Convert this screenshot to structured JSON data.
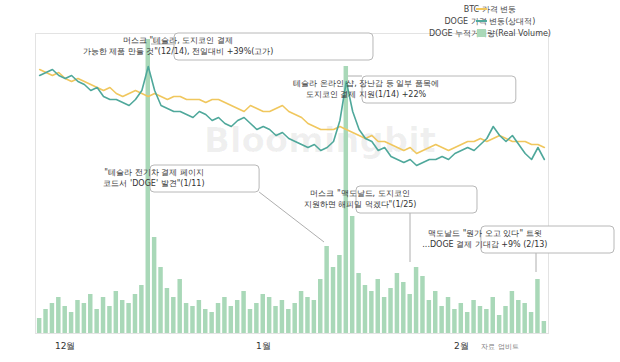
{
  "chart_data": {
    "type": "line",
    "categories": [
      null,
      null,
      null,
      null,
      "12월",
      null,
      null,
      null,
      null,
      null,
      null,
      null,
      null,
      null,
      null,
      null,
      null,
      null,
      null,
      null,
      null,
      null,
      null,
      null,
      null,
      null,
      null,
      null,
      null,
      null,
      null,
      null,
      null,
      null,
      null,
      "1월",
      null,
      null,
      null,
      null,
      null,
      null,
      null,
      null,
      null,
      null,
      null,
      null,
      null,
      null,
      null,
      null,
      null,
      null,
      null,
      null,
      null,
      null,
      null,
      null,
      null,
      null,
      null,
      null,
      null,
      null,
      "2월",
      null,
      null,
      null,
      null,
      null,
      null,
      null,
      null,
      null,
      null,
      null,
      null,
      null
    ],
    "ylim": [
      0,
      100
    ],
    "tick_labels": "x",
    "legend": "top-right",
    "series": [
      {
        "name": "BTC 가격 변동",
        "color": "#f0c75e",
        "values": [
          88,
          87,
          86,
          87,
          85,
          84,
          85,
          84,
          83,
          82,
          81,
          82,
          80,
          79,
          80,
          81,
          80,
          79,
          80,
          79,
          78,
          79,
          79,
          78,
          78,
          78,
          77,
          78,
          78,
          77,
          76,
          75,
          74,
          76,
          75,
          74,
          74,
          75,
          76,
          74,
          73,
          72,
          70,
          69,
          68,
          68,
          68,
          69,
          68,
          67,
          66,
          65,
          66,
          64,
          64,
          63,
          62,
          61,
          62,
          60,
          61,
          62,
          63,
          62,
          61,
          62,
          63,
          64,
          64,
          65,
          64,
          65,
          66,
          65,
          64,
          64,
          64,
          63,
          63,
          62
        ]
      },
      {
        "name": "DOGE 가격 변동(상대적)",
        "color": "#4fa89b",
        "values": [
          86,
          87,
          88,
          86,
          85,
          86,
          84,
          83,
          81,
          82,
          79,
          78,
          78,
          77,
          76,
          78,
          81,
          89,
          81,
          76,
          75,
          74,
          74,
          73,
          72,
          74,
          73,
          71,
          72,
          70,
          69,
          71,
          72,
          70,
          68,
          69,
          68,
          66,
          67,
          65,
          64,
          63,
          62,
          63,
          61,
          62,
          64,
          71,
          84,
          74,
          68,
          65,
          64,
          61,
          62,
          59,
          58,
          57,
          58,
          56,
          57,
          58,
          58,
          59,
          58,
          60,
          61,
          62,
          61,
          63,
          65,
          69,
          66,
          64,
          66,
          63,
          60,
          58,
          62,
          58
        ]
      },
      {
        "name": "DOGE 누적거래량(Real Volume)",
        "type": "bar",
        "color": "#a9d8b8",
        "values": [
          5,
          8,
          10,
          12,
          9,
          7,
          11,
          10,
          13,
          8,
          12,
          9,
          14,
          11,
          10,
          13,
          16,
          98,
          32,
          22,
          15,
          12,
          18,
          10,
          9,
          11,
          8,
          7,
          10,
          12,
          9,
          11,
          14,
          8,
          10,
          13,
          12,
          9,
          11,
          8,
          10,
          14,
          12,
          11,
          18,
          29,
          22,
          26,
          89,
          39,
          20,
          16,
          14,
          18,
          12,
          15,
          20,
          17,
          13,
          22,
          19,
          11,
          14,
          9,
          12,
          8,
          10,
          7,
          11,
          9,
          8,
          12,
          6,
          9,
          14,
          11,
          10,
          7,
          18,
          4
        ]
      }
    ],
    "annotations": [
      {
        "text": "머스크 \"테슬라, 도지코인 결제\n가능한 제품 만들 것\"(12/14), 전일대비 +39%(고가)"
      },
      {
        "text": "\"테슬라 전기차 결제 페이지\n코드서 'DOGE' 발견\"(1/11)"
      },
      {
        "text": "테슬라 온라인 샵, 장난감 등 일부 품목에\n도지코인 결제 지원(1/14) +22%"
      },
      {
        "text": "머스크 \"맥도날드, 도지코인\n지원하면 해피밀 먹겠다\"(1/25)"
      },
      {
        "text": "맥도날드 \"뭔가 오고 있다\" 트윗\n...DOGE 결제 기대감 +9% (2/13)"
      }
    ],
    "source": "자료 업비트",
    "watermark": "Bloomingbit"
  }
}
